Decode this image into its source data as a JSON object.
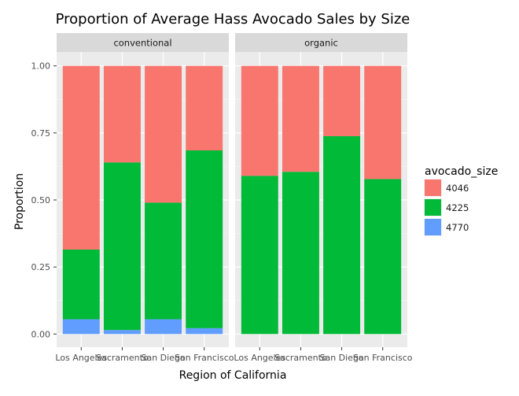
{
  "chart_data": {
    "type": "bar",
    "stacked": true,
    "title": "Proportion of Average Hass Avocado Sales by Size",
    "xlabel": "Region of California",
    "ylabel": "Proportion",
    "ylim": [
      0,
      1
    ],
    "yticks": [
      "0.00",
      "0.25",
      "0.50",
      "0.75",
      "1.00"
    ],
    "ytick_values": [
      0,
      0.25,
      0.5,
      0.75,
      1.0
    ],
    "categories": [
      "Los Angeles",
      "Sacramento",
      "San Diego",
      "San Francisco"
    ],
    "legend": {
      "title": "avocado_size",
      "placement": "right",
      "entries": [
        {
          "name": "4046",
          "color": "#F8766D"
        },
        {
          "name": "4225",
          "color": "#00BA38"
        },
        {
          "name": "4770",
          "color": "#619CFF"
        }
      ]
    },
    "panels": [
      {
        "name": "conventional",
        "series": [
          {
            "name": "4770",
            "color": "#619CFF",
            "values": [
              0.055,
              0.015,
              0.055,
              0.022
            ]
          },
          {
            "name": "4225",
            "color": "#00BA38",
            "values": [
              0.26,
              0.625,
              0.435,
              0.663
            ]
          },
          {
            "name": "4046",
            "color": "#F8766D",
            "values": [
              0.685,
              0.36,
              0.51,
              0.315
            ]
          }
        ]
      },
      {
        "name": "organic",
        "series": [
          {
            "name": "4770",
            "color": "#619CFF",
            "values": [
              0.0,
              0.0,
              0.0,
              0.0
            ]
          },
          {
            "name": "4225",
            "color": "#00BA38",
            "values": [
              0.59,
              0.605,
              0.738,
              0.578
            ]
          },
          {
            "name": "4046",
            "color": "#F8766D",
            "values": [
              0.41,
              0.395,
              0.262,
              0.422
            ]
          }
        ]
      }
    ]
  }
}
